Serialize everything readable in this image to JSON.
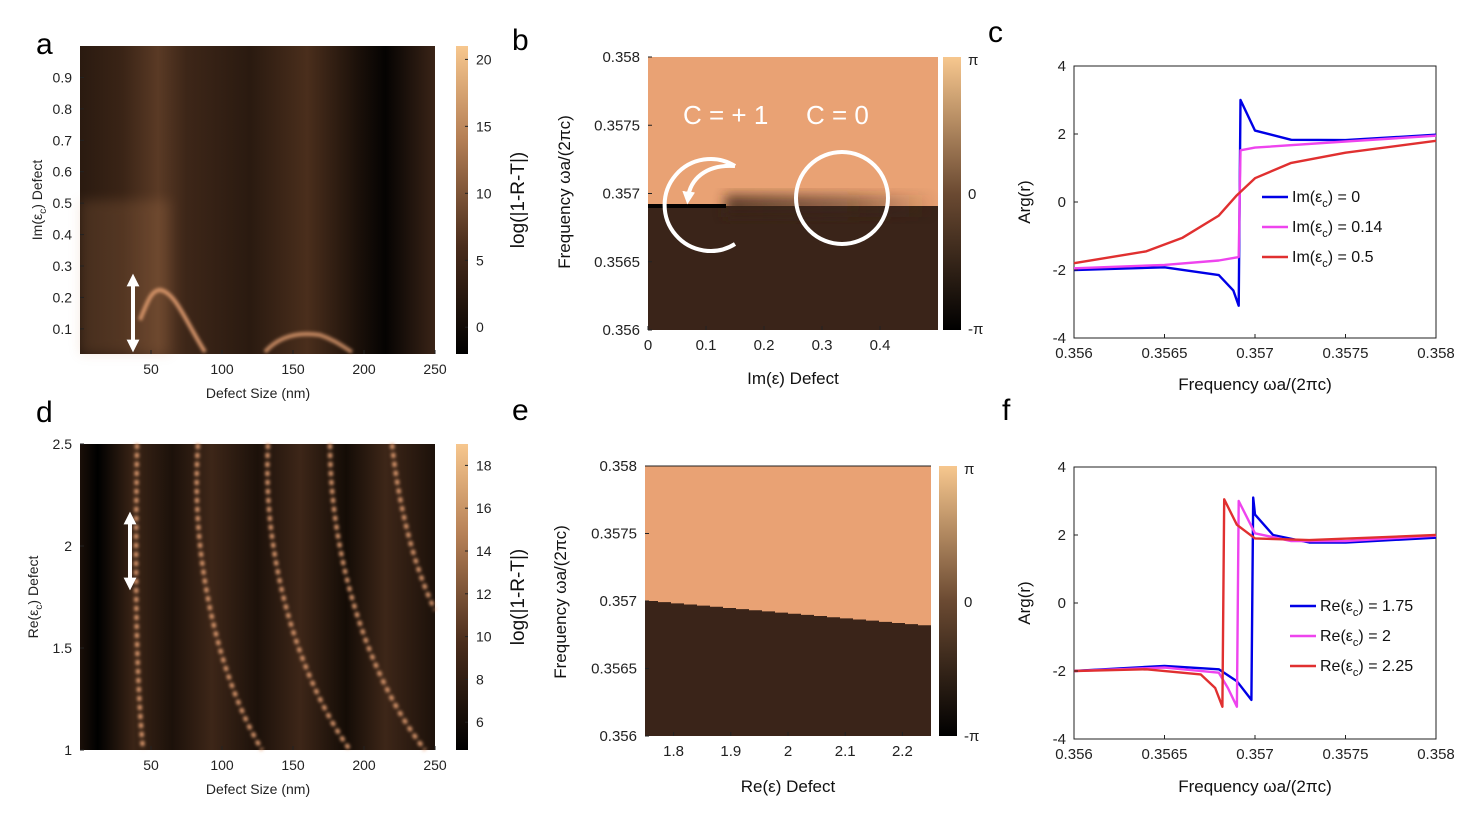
{
  "figure_colors": {
    "copper_dark": "#000000",
    "copper_light": "#f7c78e",
    "phase_high": "#e9a274",
    "phase_low": "#3a2419",
    "blue": "#0000e6",
    "magenta": "#ee44ee",
    "red": "#e03030"
  },
  "chart_data": [
    {
      "panel": "a",
      "type": "heatmap",
      "xlabel": "Defect Size (nm)",
      "ylabel": "Im(ε_c) Defect",
      "xlim": [
        0,
        250
      ],
      "ylim": [
        0.02,
        1.0
      ],
      "xticks": [
        "50",
        "100",
        "150",
        "200",
        "250"
      ],
      "yticks": [
        "0.1",
        "0.2",
        "0.3",
        "0.4",
        "0.5",
        "0.6",
        "0.7",
        "0.8",
        "0.9"
      ],
      "colorbar_label": "log(|1-R-T|)",
      "colorbar_range": [
        -2,
        21
      ],
      "colorbar_ticks": [
        "20",
        "15",
        "10",
        "5",
        "0"
      ],
      "annotation": "double-headed arrow at Defect Size 40 nm"
    },
    {
      "panel": "b",
      "type": "heatmap",
      "xlabel": "Im(ε) Defect",
      "ylabel": "Frequency ωa/(2πc)",
      "xlim": [
        0,
        0.5
      ],
      "ylim": [
        0.356,
        0.358
      ],
      "xticks": [
        "0",
        "0.1",
        "0.2",
        "0.3",
        "0.4"
      ],
      "yticks": [
        "0.358",
        "0.3575",
        "0.357",
        "0.3565",
        "0.356"
      ],
      "colorbar_ticks": [
        "π",
        "0",
        "-π"
      ],
      "annotations": [
        "C = + 1",
        "C = 0"
      ]
    },
    {
      "panel": "c",
      "type": "line",
      "xlabel": "Frequency ωa/(2πc)",
      "ylabel": "Arg(r)",
      "xlim": [
        0.356,
        0.358
      ],
      "ylim": [
        -4,
        4
      ],
      "xticks": [
        "0.356",
        "0.3565",
        "0.357",
        "0.3575",
        "0.358"
      ],
      "yticks": [
        "4",
        "2",
        "0",
        "-2",
        "-4"
      ],
      "series": [
        {
          "name": "Im(ε_c) = 0",
          "legend_main": "Im(ε",
          "legend_sub": "c",
          "legend_tail": ") = 0",
          "color": "#0000e6",
          "x": [
            0.356,
            0.3565,
            0.3568,
            0.35688,
            0.35691,
            0.35692,
            0.357,
            0.3572,
            0.3575,
            0.358
          ],
          "y": [
            -2.0,
            -1.92,
            -2.15,
            -2.6,
            -3.05,
            3.0,
            2.1,
            1.83,
            1.82,
            1.98
          ]
        },
        {
          "name": "Im(ε_c) = 0.14",
          "legend_main": "Im(ε",
          "legend_sub": "c",
          "legend_tail": ") = 0.14",
          "color": "#ee44ee",
          "x": [
            0.356,
            0.3565,
            0.3568,
            0.35691,
            0.35692,
            0.357,
            0.3575,
            0.358
          ],
          "y": [
            -1.95,
            -1.85,
            -1.72,
            -1.62,
            1.52,
            1.6,
            1.78,
            1.95
          ]
        },
        {
          "name": "Im(ε_c) = 0.5",
          "legend_main": "Im(ε",
          "legend_sub": "c",
          "legend_tail": ") = 0.5",
          "color": "#e03030",
          "x": [
            0.356,
            0.3564,
            0.3566,
            0.3568,
            0.3569,
            0.357,
            0.3572,
            0.3575,
            0.358
          ],
          "y": [
            -1.8,
            -1.45,
            -1.05,
            -0.4,
            0.2,
            0.7,
            1.15,
            1.45,
            1.8
          ]
        }
      ]
    },
    {
      "panel": "d",
      "type": "heatmap",
      "xlabel": "Defect Size (nm)",
      "ylabel": "Re(ε_c) Defect",
      "xlim": [
        0,
        250
      ],
      "ylim": [
        1,
        2.5
      ],
      "xticks": [
        "50",
        "100",
        "150",
        "200",
        "250"
      ],
      "yticks": [
        "2.5",
        "2",
        "1.5",
        "1"
      ],
      "colorbar_label": "log(|1-R-T|)",
      "colorbar_range": [
        4.7,
        19
      ],
      "colorbar_ticks": [
        "18",
        "16",
        "14",
        "12",
        "10",
        "8",
        "6"
      ],
      "annotation": "double-headed arrow at Defect Size 40 nm"
    },
    {
      "panel": "e",
      "type": "heatmap",
      "xlabel": "Re(ε) Defect",
      "ylabel": "Frequency ωa/(2πc)",
      "xlim": [
        1.75,
        2.25
      ],
      "ylim": [
        0.356,
        0.358
      ],
      "xticks": [
        "1.8",
        "1.9",
        "2",
        "2.1",
        "2.2"
      ],
      "yticks": [
        "0.358",
        "0.3575",
        "0.357",
        "0.3565",
        "0.356"
      ],
      "colorbar_ticks": [
        "π",
        "0",
        "-π"
      ]
    },
    {
      "panel": "f",
      "type": "line",
      "xlabel": "Frequency ωa/(2πc)",
      "ylabel": "Arg(r)",
      "xlim": [
        0.356,
        0.358
      ],
      "ylim": [
        -4,
        4
      ],
      "xticks": [
        "0.356",
        "0.3565",
        "0.357",
        "0.3575",
        "0.358"
      ],
      "yticks": [
        "4",
        "2",
        "0",
        "-2",
        "-4"
      ],
      "series": [
        {
          "name": "Re(ε_c) = 1.75",
          "legend_main": "Re(ε",
          "legend_sub": "c",
          "legend_tail": ") = 1.75",
          "color": "#0000e6",
          "x": [
            0.356,
            0.3565,
            0.3568,
            0.3569,
            0.35698,
            0.35699,
            0.357,
            0.3571,
            0.3573,
            0.3575,
            0.358
          ],
          "y": [
            -2.0,
            -1.85,
            -1.95,
            -2.3,
            -2.85,
            3.1,
            2.6,
            2.0,
            1.78,
            1.78,
            1.92
          ]
        },
        {
          "name": "Re(ε_c) = 2",
          "legend_main": "Re(ε",
          "legend_sub": "c",
          "legend_tail": ") = 2",
          "color": "#ee44ee",
          "x": [
            0.356,
            0.3565,
            0.3568,
            0.35685,
            0.3569,
            0.35691,
            0.357,
            0.3572,
            0.3575,
            0.358
          ],
          "y": [
            -2.0,
            -1.9,
            -2.05,
            -2.5,
            -3.05,
            3.0,
            2.05,
            1.82,
            1.82,
            1.98
          ]
        },
        {
          "name": "Re(ε_c) = 2.25",
          "legend_main": "Re(ε",
          "legend_sub": "c",
          "legend_tail": ") = 2.25",
          "color": "#e03030",
          "x": [
            0.356,
            0.3564,
            0.3567,
            0.35678,
            0.35682,
            0.35683,
            0.3569,
            0.357,
            0.3573,
            0.358
          ],
          "y": [
            -2.0,
            -1.95,
            -2.1,
            -2.5,
            -3.05,
            3.05,
            2.3,
            1.9,
            1.85,
            2.0
          ]
        }
      ]
    }
  ],
  "panels": {
    "a": {
      "letter": "a",
      "colorbar_label": "log(|1-R-T|)",
      "xlabel": "Defect Size (nm)",
      "ylabel_main": "Im(ε",
      "ylabel_sub": "c",
      "ylabel_tail": ") Defect"
    },
    "b": {
      "letter": "b",
      "xlabel": "Im(ε) Defect",
      "ylabel": "Frequency ωa/(2πc)",
      "cplus": "C = + 1",
      "czero": "C = 0",
      "cb_top": "π",
      "cb_mid": "0",
      "cb_bot": "-π"
    },
    "c": {
      "letter": "c",
      "xlabel": "Frequency ωa/(2πc)",
      "ylabel": "Arg(r)"
    },
    "d": {
      "letter": "d",
      "colorbar_label": "log(|1-R-T|)",
      "xlabel": "Defect Size (nm)",
      "ylabel_main": "Re(ε",
      "ylabel_sub": "c",
      "ylabel_tail": ") Defect"
    },
    "e": {
      "letter": "e",
      "xlabel": "Re(ε) Defect",
      "ylabel": "Frequency ωa/(2πc)",
      "cb_top": "π",
      "cb_mid": "0",
      "cb_bot": "-π"
    },
    "f": {
      "letter": "f",
      "xlabel": "Frequency ωa/(2πc)",
      "ylabel": "Arg(r)"
    }
  }
}
